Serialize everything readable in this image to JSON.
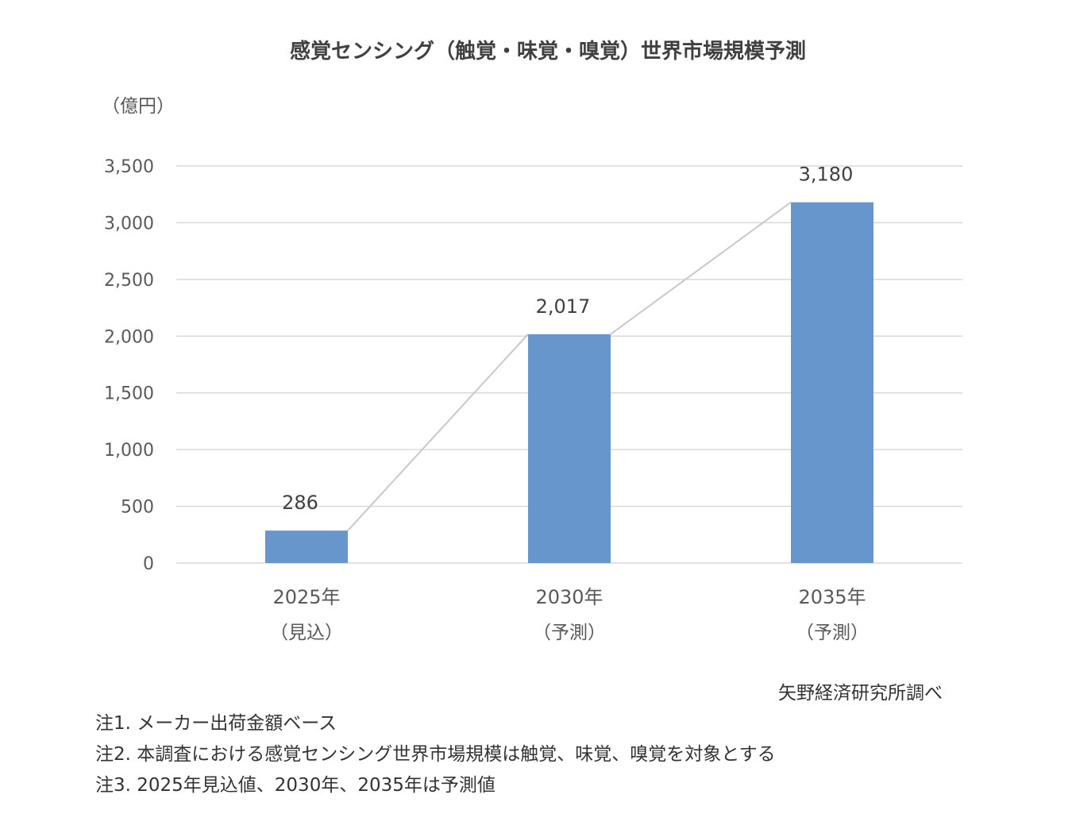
{
  "chart_data": {
    "type": "bar",
    "title": "感覚センシング（触覚・味覚・嗅覚）世界市場規模予測",
    "unit": "（億円）",
    "categories": [
      {
        "year": "2025年",
        "note": "（見込）"
      },
      {
        "year": "2030年",
        "note": "（予測）"
      },
      {
        "year": "2035年",
        "note": "（予測）"
      }
    ],
    "values": [
      286,
      2017,
      3180
    ],
    "value_labels": [
      "286",
      "2,017",
      "3,180"
    ],
    "yticks": [
      "0",
      "500",
      "1,000",
      "1,500",
      "2,000",
      "2,500",
      "3,000",
      "3,500"
    ],
    "ylim": [
      0,
      3500
    ],
    "grid": true,
    "connector_line": true,
    "bar_color": "#6796cd",
    "line_color": "#c8c8c8",
    "grid_color": "#d9d9d9"
  },
  "source": "矢野経済研究所調べ",
  "notes": [
    "注1. メーカー出荷金額ベース",
    "注2. 本調査における感覚センシング世界市場規模は触覚、味覚、嗅覚を対象とする",
    "注3. 2025年見込値、2030年、2035年は予測値"
  ]
}
